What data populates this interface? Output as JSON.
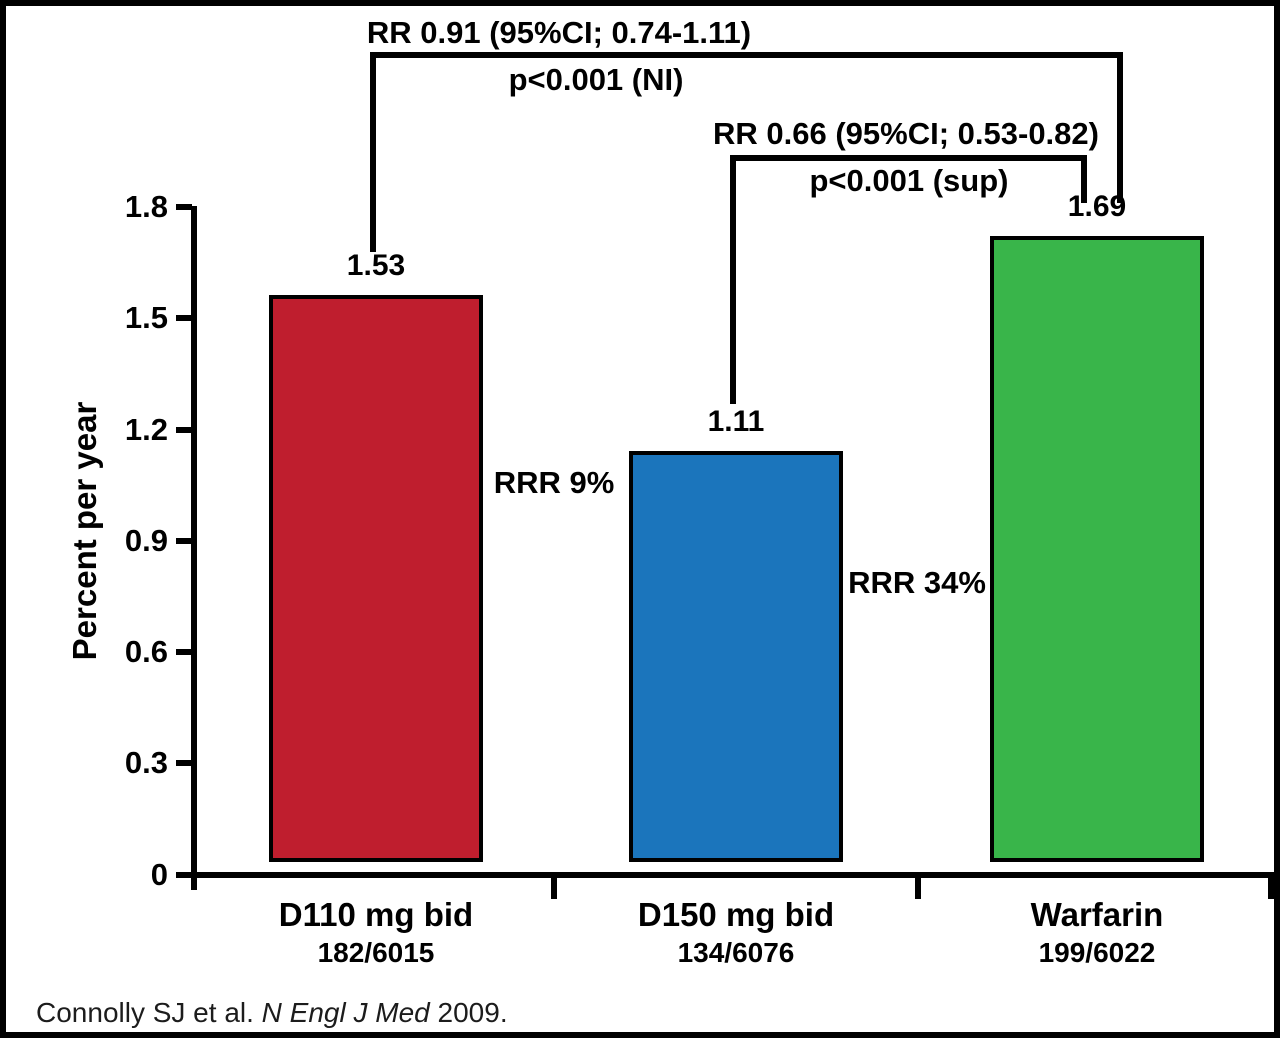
{
  "chart_data": {
    "type": "bar",
    "title": "",
    "xlabel": "",
    "ylabel": "Percent per year",
    "ylim": [
      0,
      1.8
    ],
    "yticks": [
      0,
      0.3,
      0.6,
      0.9,
      1.2,
      1.5,
      1.8
    ],
    "ytick_labels": [
      "0",
      "0.3",
      "0.6",
      "0.9",
      "1.2",
      "1.5",
      "1.8"
    ],
    "grid": "off",
    "legend": "none",
    "categories": [
      "D110 mg bid",
      "D150 mg bid",
      "Warfarin"
    ],
    "values": [
      1.53,
      1.11,
      1.69
    ],
    "value_labels": [
      "1.53",
      "1.11",
      "1.69"
    ],
    "counts": [
      "182/6015",
      "134/6076",
      "199/6022"
    ],
    "bar_colors": [
      "#bf1e2e",
      "#1b75bc",
      "#39b54a"
    ],
    "annotations": {
      "bracket1_line1": "RR 0.91 (95%CI; 0.74-1.11)",
      "bracket1_line2": "p<0.001 (NI)",
      "bracket2_line1": "RR 0.66 (95%CI; 0.53-0.82)",
      "bracket2_line2": "p<0.001 (sup)",
      "rrr_d110": "RRR 9%",
      "rrr_d150": "RRR 34%"
    }
  },
  "citation": {
    "prefix": "Connolly SJ et al. ",
    "journal": "N Engl J Med",
    "suffix": " 2009."
  }
}
